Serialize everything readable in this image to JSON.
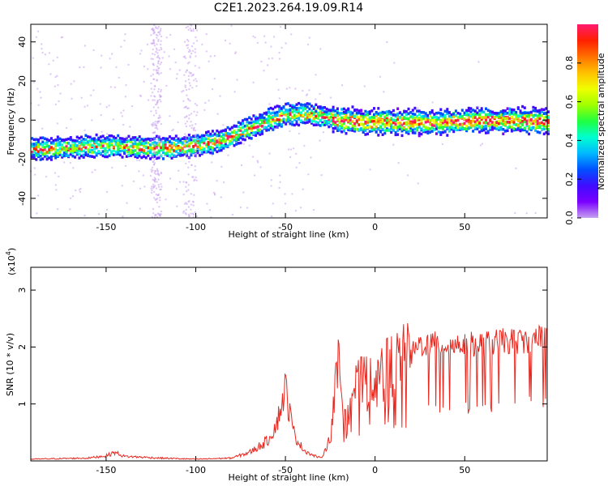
{
  "title": "C2E1.2023.264.19.09.R14",
  "colors": {
    "snr_line": "#e8281f",
    "axis": "#000000",
    "colormap": [
      "#c6a0f0",
      "#7a00ff",
      "#3f0cff",
      "#0050ff",
      "#00b8ff",
      "#00ffd0",
      "#20ff40",
      "#a0ff00",
      "#f0ff00",
      "#ffc000",
      "#ff7000",
      "#ff2000",
      "#ff1a70"
    ]
  },
  "chart_data": [
    {
      "type": "heatmap",
      "name": "spectrogram",
      "xlabel": "Height of straight line (km)",
      "ylabel": "Frequency (Hz)",
      "xlim": [
        -192,
        96
      ],
      "ylim": [
        -50,
        49
      ],
      "xticks": [
        -150,
        -100,
        -50,
        0,
        50
      ],
      "xtick_labels": [
        "-150",
        "-100",
        "-50",
        "0",
        "50"
      ],
      "yticks": [
        -40,
        -20,
        0,
        20,
        40
      ],
      "ytick_labels": [
        "-40",
        "-20",
        "0",
        "20",
        "40"
      ],
      "ridge": {
        "x": [
          -192,
          -170,
          -150,
          -130,
          -110,
          -100,
          -90,
          -80,
          -70,
          -60,
          -50,
          -40,
          -30,
          -20,
          0,
          20,
          40,
          60,
          80,
          96
        ],
        "y": [
          -15,
          -14,
          -13,
          -14,
          -14,
          -13,
          -11,
          -8,
          -4,
          0,
          3,
          3,
          2,
          0,
          -1,
          -1,
          -1,
          0,
          0,
          -1
        ]
      },
      "colorbar": {
        "label": "Normalized spectral amplitude",
        "range": [
          0.0,
          1.0
        ],
        "ticks": [
          0.0,
          0.2,
          0.4,
          0.6,
          0.8
        ],
        "tick_labels": [
          "0.0",
          "0.2",
          "0.4",
          "0.6",
          "0.8"
        ]
      }
    },
    {
      "type": "line",
      "name": "snr",
      "xlabel": "Height of straight line (km)",
      "ylabel": "SNR (10 * v/v)",
      "scale_label": "(x10",
      "scale_exp": "4",
      "scale_close": ")",
      "xlim": [
        -192,
        96
      ],
      "ylim": [
        0,
        3.4
      ],
      "xticks": [
        -150,
        -100,
        -50,
        0,
        50
      ],
      "xtick_labels": [
        "-150",
        "-100",
        "-50",
        "0",
        "50"
      ],
      "yticks": [
        1,
        2,
        3
      ],
      "ytick_labels": [
        "1",
        "2",
        "3"
      ],
      "envelope": {
        "x": [
          -192,
          -160,
          -150,
          -145,
          -140,
          -120,
          -100,
          -80,
          -70,
          -60,
          -55,
          -52,
          -50,
          -48,
          -45,
          -40,
          -35,
          -30,
          -25,
          -22,
          -20,
          -18,
          -15,
          -10,
          -5,
          0,
          5,
          10,
          20,
          25,
          30,
          40,
          50,
          60,
          70,
          80,
          90,
          95
        ],
        "y": [
          0.03,
          0.05,
          0.09,
          0.15,
          0.08,
          0.05,
          0.03,
          0.05,
          0.15,
          0.35,
          0.65,
          1.0,
          1.3,
          0.9,
          0.45,
          0.2,
          0.1,
          0.05,
          0.4,
          1.3,
          1.7,
          1.1,
          1.2,
          1.3,
          1.45,
          1.55,
          1.6,
          1.7,
          1.85,
          2.05,
          2.05,
          2.05,
          2.05,
          2.05,
          2.1,
          2.1,
          2.15,
          2.2
        ]
      }
    }
  ]
}
